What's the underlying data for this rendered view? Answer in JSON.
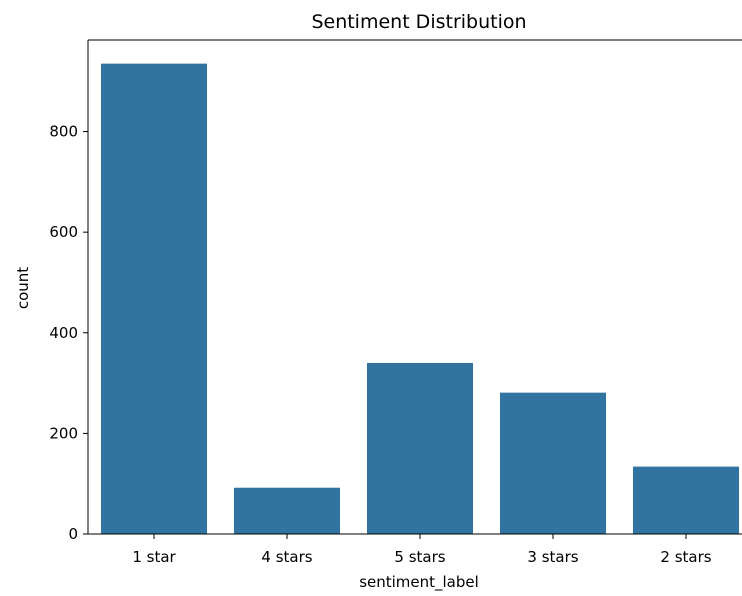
{
  "chart_data": {
    "type": "bar",
    "title": "Sentiment Distribution",
    "xlabel": "sentiment_label",
    "ylabel": "count",
    "categories": [
      "1 star",
      "4 stars",
      "5 stars",
      "3 stars",
      "2 stars"
    ],
    "values": [
      935,
      92,
      340,
      281,
      134
    ],
    "ylim": [
      0,
      982
    ],
    "yticks": [
      0,
      200,
      400,
      600,
      800
    ],
    "grid": false,
    "bar_color": "#3274a1"
  }
}
